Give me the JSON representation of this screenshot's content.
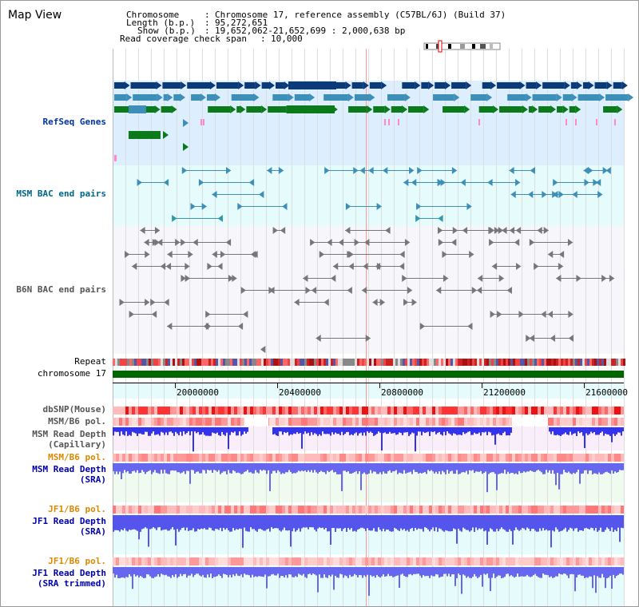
{
  "page": {
    "title": "Map View"
  },
  "info": {
    "rows": [
      {
        "label": "Chromosome",
        "value": "Chromosome 17, reference assembly (C57BL/6J) (Build 37)"
      },
      {
        "label": "Length (b.p.)",
        "value": "95,272,651"
      },
      {
        "label": "Show (b.p.)",
        "value": "19,652,062-21,652,699 : 2,000,638 bp"
      }
    ],
    "coverage_label": "Read coverage check span",
    "coverage_value": "10,000"
  },
  "tracks": {
    "refseq": "RefSeq Genes",
    "msm_bac": "MSM BAC end pairs",
    "b6n_bac": "B6N BAC end pairs",
    "repeat": "Repeat",
    "chromosome": "chromosome 17",
    "dbsnp": "dbSNP(Mouse)",
    "msm_b6_pol_1": "MSM/B6 pol.",
    "msm_depth_cap_1": "MSM Read Depth",
    "msm_depth_cap_2": "(Capillary)",
    "msm_b6_pol_2": "MSM/B6 pol.",
    "msm_depth_sra_1": "MSM Read Depth",
    "msm_depth_sra_2": "(SRA)",
    "jf1_b6_pol_1": "JF1/B6 pol.",
    "jf1_depth_sra_1": "JF1 Read Depth",
    "jf1_depth_sra_2": "(SRA)",
    "jf1_b6_pol_2": "JF1/B6 pol.",
    "jf1_depth_trim_1": "JF1 Read Depth",
    "jf1_depth_trim_2": "(SRA trimmed)"
  },
  "axis": {
    "ticks": [
      "20000000",
      "20400000",
      "20800000",
      "21200000",
      "21600000"
    ]
  },
  "colors": {
    "refseq_bg": "#ddeeff",
    "bac_bg": "#e6fbfb",
    "b6n_bg": "#f7f7fb",
    "capillary_bg": "#fbeefb",
    "sra_bg": "#eefbee",
    "jf1_bg": "#e6fbfb",
    "gene_dark": "#0a3a78",
    "gene_mid": "#3d8fb8",
    "gene_green": "#0a7a1a",
    "gene_pink": "#ff88cc",
    "chromosome": "#006600",
    "depth_blue": "#3333ee"
  }
}
